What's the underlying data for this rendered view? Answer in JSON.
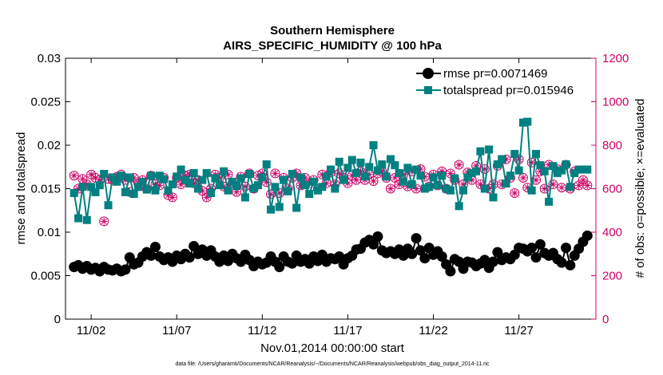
{
  "chart_data": {
    "type": "line",
    "title": "Southern Hemisphere",
    "subtitle": "AIRS_SPECIFIC_HUMIDITY @ 100 hPa",
    "xlabel": "Nov.01,2014 00:00:00 start",
    "ylabel": "rmse and totalspread",
    "y2label": "# of obs: o=possible; ×=evaluated",
    "xlim": [
      0.5,
      31.5
    ],
    "ylim": [
      0,
      0.03
    ],
    "y2lim": [
      0,
      1200
    ],
    "x_ticks": [
      2,
      7,
      12,
      17,
      22,
      27
    ],
    "x_tick_labels": [
      "11/02",
      "11/07",
      "11/12",
      "11/17",
      "11/22",
      "11/27"
    ],
    "y_tick_labels": [
      "0",
      "0.005",
      "0.01",
      "0.015",
      "0.02",
      "0.025",
      "0.03"
    ],
    "y_ticks": [
      0,
      0.005,
      0.01,
      0.015,
      0.02,
      0.025,
      0.03
    ],
    "y2_tick_labels": [
      "0",
      "200",
      "400",
      "600",
      "800",
      "1000",
      "1200"
    ],
    "y2_ticks": [
      0,
      200,
      400,
      600,
      800,
      1000,
      1200
    ],
    "legend": {
      "location": "top-right",
      "entries": [
        "rmse pr=0.0071469",
        "totalspread pr=0.015946"
      ]
    },
    "footer": "data file: /Users/gharamti/Documents/NCAR/Reanalysis/~/Documents/NCAR/Reanalysis/webpub/obs_diag_output_2014-11.nc",
    "colors": {
      "rmse": "#000000",
      "totalspread": "#008080",
      "obs": "#cc0066"
    },
    "series": [
      {
        "name": "rmse",
        "x": [
          1.0,
          1.25,
          1.5,
          1.75,
          2.0,
          2.25,
          2.5,
          2.75,
          3.0,
          3.25,
          3.5,
          3.75,
          4.0,
          4.25,
          4.5,
          4.75,
          5.0,
          5.25,
          5.5,
          5.75,
          6.0,
          6.25,
          6.5,
          6.75,
          7.0,
          7.25,
          7.5,
          7.75,
          8.0,
          8.25,
          8.5,
          8.75,
          9.0,
          9.25,
          9.5,
          9.75,
          10.0,
          10.25,
          10.5,
          10.75,
          11.0,
          11.25,
          11.5,
          11.75,
          12.0,
          12.25,
          12.5,
          12.75,
          13.0,
          13.25,
          13.5,
          13.75,
          14.0,
          14.25,
          14.5,
          14.75,
          15.0,
          15.25,
          15.5,
          15.75,
          16.0,
          16.25,
          16.5,
          16.75,
          17.0,
          17.25,
          17.5,
          17.75,
          18.0,
          18.25,
          18.5,
          18.75,
          19.0,
          19.25,
          19.5,
          19.75,
          20.0,
          20.25,
          20.5,
          20.75,
          21.0,
          21.25,
          21.5,
          21.75,
          22.0,
          22.25,
          22.5,
          22.75,
          23.0,
          23.25,
          23.5,
          23.75,
          24.0,
          24.25,
          24.5,
          24.75,
          25.0,
          25.25,
          25.5,
          25.75,
          26.0,
          26.25,
          26.5,
          26.75,
          27.0,
          27.25,
          27.5,
          27.75,
          28.0,
          28.25,
          28.5,
          28.75,
          29.0,
          29.25,
          29.5,
          29.75,
          30.0,
          30.25,
          30.5,
          30.75,
          31.0
        ],
        "values": [
          0.006,
          0.0062,
          0.0058,
          0.0061,
          0.0057,
          0.0059,
          0.0055,
          0.006,
          0.0057,
          0.0056,
          0.0058,
          0.0055,
          0.0057,
          0.0071,
          0.0063,
          0.0065,
          0.0072,
          0.0077,
          0.0073,
          0.0083,
          0.0072,
          0.0068,
          0.0071,
          0.0066,
          0.0073,
          0.0069,
          0.0075,
          0.0071,
          0.0084,
          0.0075,
          0.008,
          0.0073,
          0.0079,
          0.0072,
          0.0066,
          0.0073,
          0.0067,
          0.0075,
          0.007,
          0.0066,
          0.0074,
          0.0068,
          0.0061,
          0.0066,
          0.0063,
          0.0065,
          0.0072,
          0.0066,
          0.006,
          0.0072,
          0.0066,
          0.0064,
          0.0073,
          0.0066,
          0.0069,
          0.0064,
          0.0072,
          0.0067,
          0.0074,
          0.0066,
          0.007,
          0.0069,
          0.0072,
          0.0063,
          0.007,
          0.0073,
          0.008,
          0.0081,
          0.0088,
          0.0091,
          0.0086,
          0.0095,
          0.0079,
          0.0076,
          0.0078,
          0.0075,
          0.008,
          0.0073,
          0.0081,
          0.0075,
          0.0093,
          0.0079,
          0.007,
          0.0082,
          0.0074,
          0.0078,
          0.0072,
          0.0063,
          0.0055,
          0.0069,
          0.0066,
          0.0058,
          0.0066,
          0.0065,
          0.0061,
          0.0064,
          0.0068,
          0.0059,
          0.0066,
          0.0077,
          0.0068,
          0.0071,
          0.0069,
          0.0074,
          0.0082,
          0.0081,
          0.0078,
          0.0082,
          0.0071,
          0.0086,
          0.0076,
          0.0073,
          0.0076,
          0.0069,
          0.0065,
          0.0082,
          0.0062,
          0.0073,
          0.0081,
          0.0089,
          0.0096
        ]
      },
      {
        "name": "totalspread",
        "values": [
          0.0145,
          0.0116,
          0.0152,
          0.0114,
          0.0152,
          0.0146,
          0.0154,
          0.0167,
          0.0131,
          0.0163,
          0.0158,
          0.0165,
          0.0146,
          0.0163,
          0.0144,
          0.0152,
          0.0158,
          0.0149,
          0.0165,
          0.0148,
          0.0165,
          0.0161,
          0.0148,
          0.0155,
          0.0164,
          0.0172,
          0.016,
          0.0156,
          0.0168,
          0.015,
          0.016,
          0.0168,
          0.0145,
          0.0162,
          0.0154,
          0.017,
          0.0148,
          0.0158,
          0.0153,
          0.0162,
          0.014,
          0.0167,
          0.015,
          0.0154,
          0.0163,
          0.0178,
          0.0126,
          0.0152,
          0.0129,
          0.016,
          0.0147,
          0.0167,
          0.0128,
          0.0163,
          0.0154,
          0.0144,
          0.0158,
          0.0148,
          0.0152,
          0.0164,
          0.0172,
          0.015,
          0.0181,
          0.016,
          0.0174,
          0.0183,
          0.0168,
          0.018,
          0.0164,
          0.0175,
          0.02,
          0.0171,
          0.0178,
          0.0164,
          0.0184,
          0.0177,
          0.0168,
          0.0158,
          0.0174,
          0.0155,
          0.0172,
          0.0165,
          0.015,
          0.0152,
          0.0163,
          0.0154,
          0.0165,
          0.015,
          0.0148,
          0.0162,
          0.013,
          0.0148,
          0.0163,
          0.0168,
          0.017,
          0.0193,
          0.015,
          0.0195,
          0.014,
          0.0178,
          0.0184,
          0.0156,
          0.0165,
          0.019,
          0.0171,
          0.0226,
          0.0227,
          0.0148,
          0.019,
          0.0177,
          0.017,
          0.0135,
          0.0176,
          0.0168,
          0.0171,
          0.0178,
          0.0152,
          0.0168,
          0.0172,
          0.0172,
          0.0172
        ]
      },
      {
        "name": "obs possible",
        "axis": "y2",
        "values": [
          660,
          600,
          645,
          620,
          665,
          650,
          640,
          450,
          645,
          640,
          655,
          665,
          640,
          585,
          650,
          625,
          640,
          600,
          660,
          620,
          615,
          650,
          570,
          560,
          650,
          620,
          660,
          665,
          625,
          640,
          590,
          560,
          600,
          665,
          650,
          610,
          665,
          625,
          585,
          655,
          610,
          670,
          600,
          660,
          670,
          630,
          575,
          670,
          580,
          650,
          600,
          650,
          670,
          615,
          650,
          625,
          640,
          600,
          665,
          625,
          675,
          620,
          670,
          650,
          625,
          660,
          640,
          680,
          640,
          665,
          635,
          670,
          680,
          650,
          600,
          650,
          620,
          665,
          610,
          680,
          600,
          690,
          655,
          610,
          665,
          615,
          680,
          600,
          670,
          640,
          710,
          620,
          675,
          640,
          705,
          620,
          690,
          600,
          620,
          705,
          620,
          735,
          650,
          580,
          735,
          650,
          605,
          720,
          640,
          680,
          600,
          710,
          620,
          690,
          605,
          710,
          600,
          680,
          615,
          640,
          615
        ]
      },
      {
        "name": "obs evaluated",
        "axis": "y2",
        "values": [
          660,
          600,
          645,
          620,
          665,
          650,
          640,
          450,
          645,
          640,
          655,
          665,
          640,
          585,
          650,
          625,
          640,
          600,
          660,
          620,
          615,
          650,
          570,
          560,
          650,
          620,
          660,
          665,
          625,
          640,
          590,
          560,
          600,
          665,
          650,
          610,
          665,
          625,
          585,
          655,
          610,
          670,
          600,
          660,
          670,
          630,
          575,
          670,
          580,
          650,
          600,
          650,
          670,
          615,
          650,
          625,
          640,
          600,
          665,
          625,
          675,
          620,
          670,
          650,
          625,
          660,
          640,
          680,
          640,
          665,
          635,
          670,
          680,
          650,
          600,
          650,
          620,
          665,
          610,
          680,
          600,
          690,
          655,
          610,
          665,
          615,
          680,
          600,
          670,
          640,
          710,
          620,
          675,
          640,
          705,
          620,
          690,
          600,
          620,
          705,
          620,
          735,
          650,
          580,
          735,
          650,
          605,
          720,
          640,
          680,
          600,
          710,
          620,
          690,
          605,
          710,
          600,
          680,
          615,
          640,
          615
        ]
      }
    ]
  }
}
